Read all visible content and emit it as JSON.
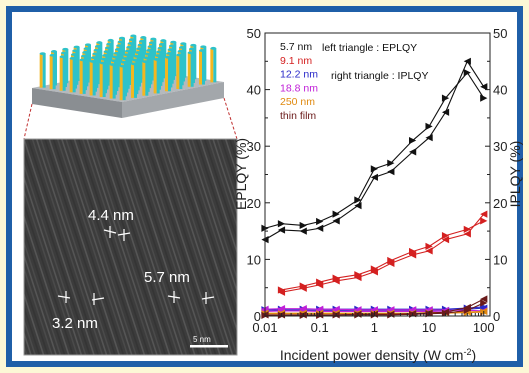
{
  "colors": {
    "border": "#1f5fa8",
    "background": "#fcf8d6",
    "array_base": "#a9adb1",
    "rod_yellow": "#f2b721",
    "rod_cyan": "#2ec2c9",
    "tem_background": "#3c3c3c"
  },
  "tem_image": {
    "labels": [
      "4.4 nm",
      "5.7 nm",
      "3.2 nm"
    ],
    "scale_bar": "5 nm"
  },
  "chart_data": {
    "type": "line",
    "xlabel": "Incident power density (W cm",
    "xlabel_superscript": "-2",
    "ylabel_left": "EPLQY (%)",
    "ylabel_right": "IPLQY (%)",
    "xscale": "log",
    "xlim": [
      0.01,
      130
    ],
    "ylim": [
      0,
      50
    ],
    "x_ticks": [
      "0.01",
      "0.1",
      "1",
      "10",
      "100"
    ],
    "y_ticks": [
      "0",
      "10",
      "20",
      "30",
      "40",
      "50"
    ],
    "grid": false,
    "legend_position": "top-left",
    "annotations": [
      "left triangle : EPLQY",
      "right triangle : IPLQY"
    ],
    "x": [
      0.01,
      0.02,
      0.05,
      0.1,
      0.2,
      0.5,
      1,
      2,
      5,
      10,
      20,
      50,
      100
    ],
    "series": [
      {
        "name": "5.7 nm",
        "color": "#111111",
        "eplqy": [
          13.5,
          15.2,
          15.0,
          15.5,
          16.8,
          19.5,
          24.5,
          25.5,
          29.0,
          31.5,
          36.0,
          45.0,
          40.5
        ],
        "iplqy": [
          15.5,
          16.3,
          16.0,
          16.7,
          18.0,
          20.5,
          26.0,
          27.0,
          31.0,
          33.5,
          38.5,
          43.0,
          38.5
        ]
      },
      {
        "name": "9.1 nm",
        "color": "#d42020",
        "eplqy": [
          null,
          4.2,
          4.9,
          5.5,
          6.2,
          6.8,
          7.8,
          9.3,
          10.8,
          11.5,
          13.5,
          14.5,
          18.0
        ],
        "iplqy": [
          null,
          4.6,
          5.3,
          6.0,
          6.7,
          7.3,
          8.3,
          9.8,
          11.4,
          12.3,
          14.2,
          15.3,
          16.8
        ]
      },
      {
        "name": "12.2 nm",
        "color": "#2929c8",
        "eplqy": [
          0.9,
          1.0,
          1.0,
          1.0,
          1.0,
          1.0,
          1.0,
          1.0,
          1.0,
          1.0,
          1.0,
          1.2,
          1.4
        ],
        "iplqy": [
          1.1,
          1.2,
          1.2,
          1.2,
          1.2,
          1.2,
          1.2,
          1.2,
          1.2,
          1.2,
          1.2,
          1.4,
          1.6
        ]
      },
      {
        "name": "18.8 nm",
        "color": "#c020d8",
        "eplqy": [
          1.2,
          1.3,
          1.3,
          1.2,
          1.2,
          1.1,
          1.1,
          1.1,
          1.1,
          1.1,
          1.0,
          1.0,
          0.9
        ],
        "iplqy": [
          0.8,
          0.9,
          0.9,
          0.8,
          0.8,
          0.8,
          0.8,
          0.8,
          0.8,
          0.8,
          0.7,
          0.7,
          0.7
        ]
      },
      {
        "name": "250 nm",
        "color": "#e08a10",
        "eplqy": [
          0.5,
          0.5,
          0.5,
          0.5,
          0.5,
          0.5,
          0.5,
          0.5,
          0.5,
          0.6,
          0.6,
          0.7,
          0.8
        ],
        "iplqy": [
          0.4,
          0.4,
          0.4,
          0.4,
          0.4,
          0.4,
          0.4,
          0.4,
          0.4,
          0.5,
          0.5,
          0.6,
          0.7
        ]
      },
      {
        "name": "thin film",
        "color": "#6a1a1a",
        "eplqy": [
          0.2,
          0.2,
          0.2,
          0.2,
          0.2,
          0.3,
          0.3,
          0.3,
          0.4,
          0.5,
          0.7,
          1.5,
          3.0
        ],
        "iplqy": [
          0.1,
          0.1,
          0.1,
          0.1,
          0.2,
          0.2,
          0.2,
          0.2,
          0.3,
          0.4,
          0.5,
          1.0,
          2.3
        ]
      }
    ]
  }
}
